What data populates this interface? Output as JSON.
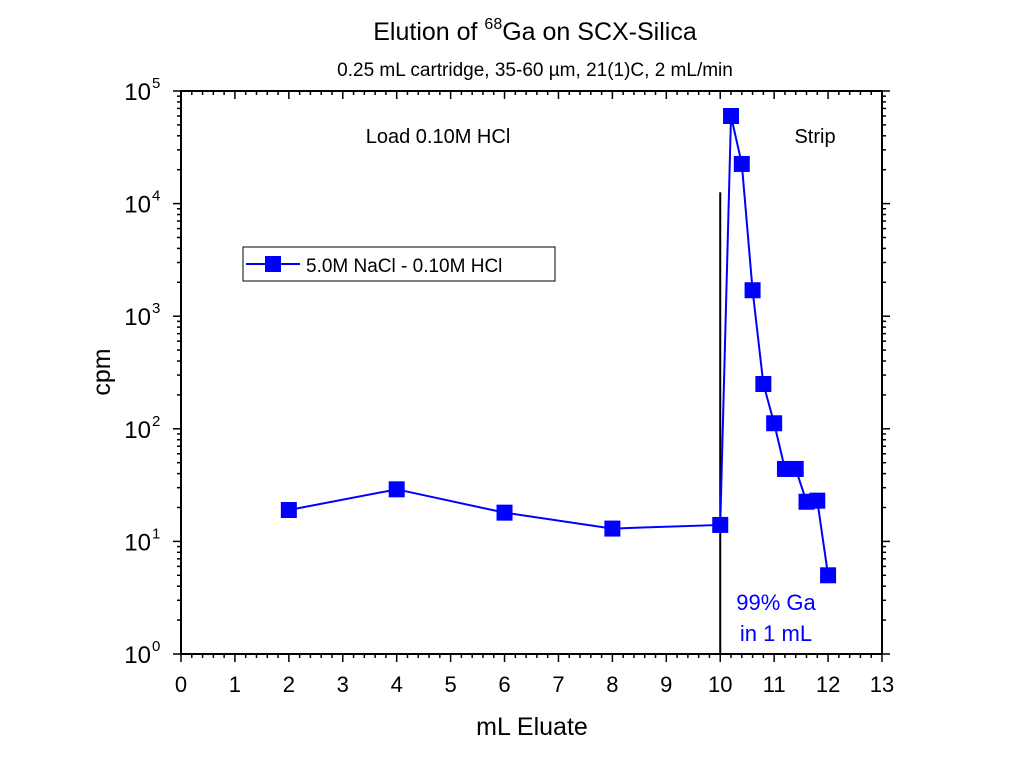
{
  "chart_data": {
    "type": "line",
    "title": {
      "prefix": "Elution of ",
      "superscript": "68",
      "suffix": "Ga on SCX-Silica"
    },
    "subtitle": "0.25 mL cartridge, 35-60 µm, 21(1)C, 2 mL/min",
    "xlabel": "mL Eluate",
    "ylabel": "cpm",
    "xlim": [
      0,
      13
    ],
    "ylim": [
      1,
      100000
    ],
    "yscale": "log",
    "x_ticks": [
      "0",
      "1",
      "2",
      "3",
      "4",
      "5",
      "6",
      "7",
      "8",
      "9",
      "10",
      "11",
      "12",
      "13"
    ],
    "y_ticks": [
      {
        "base": "10",
        "exp": "0"
      },
      {
        "base": "10",
        "exp": "1"
      },
      {
        "base": "10",
        "exp": "2"
      },
      {
        "base": "10",
        "exp": "3"
      },
      {
        "base": "10",
        "exp": "4"
      },
      {
        "base": "10",
        "exp": "5"
      }
    ],
    "series": [
      {
        "name": "5.0M NaCl - 0.10M HCl",
        "color": "#0000ff",
        "marker": "square",
        "x": [
          2,
          4,
          6,
          8,
          10,
          10.2,
          10.4,
          10.6,
          10.8,
          11.0,
          11.2,
          11.4,
          11.6,
          11.8,
          12.0
        ],
        "y": [
          19,
          29,
          18,
          13,
          14,
          60000,
          22500,
          1700,
          250,
          112,
          44,
          44,
          22.5,
          23,
          5
        ]
      }
    ],
    "vertical_line": {
      "x": 10,
      "y_top": 12600,
      "color": "#000000"
    },
    "legend": {
      "position": "upper-left",
      "label": "5.0M NaCl - 0.10M HCl"
    },
    "annotations": [
      {
        "text": "Load 0.10M HCl",
        "color": "#000000"
      },
      {
        "text": "Strip",
        "color": "#000000"
      },
      {
        "text": "99% Ga",
        "color": "#0000ff"
      },
      {
        "text": "in 1 mL",
        "color": "#0000ff"
      }
    ],
    "grid": false
  }
}
